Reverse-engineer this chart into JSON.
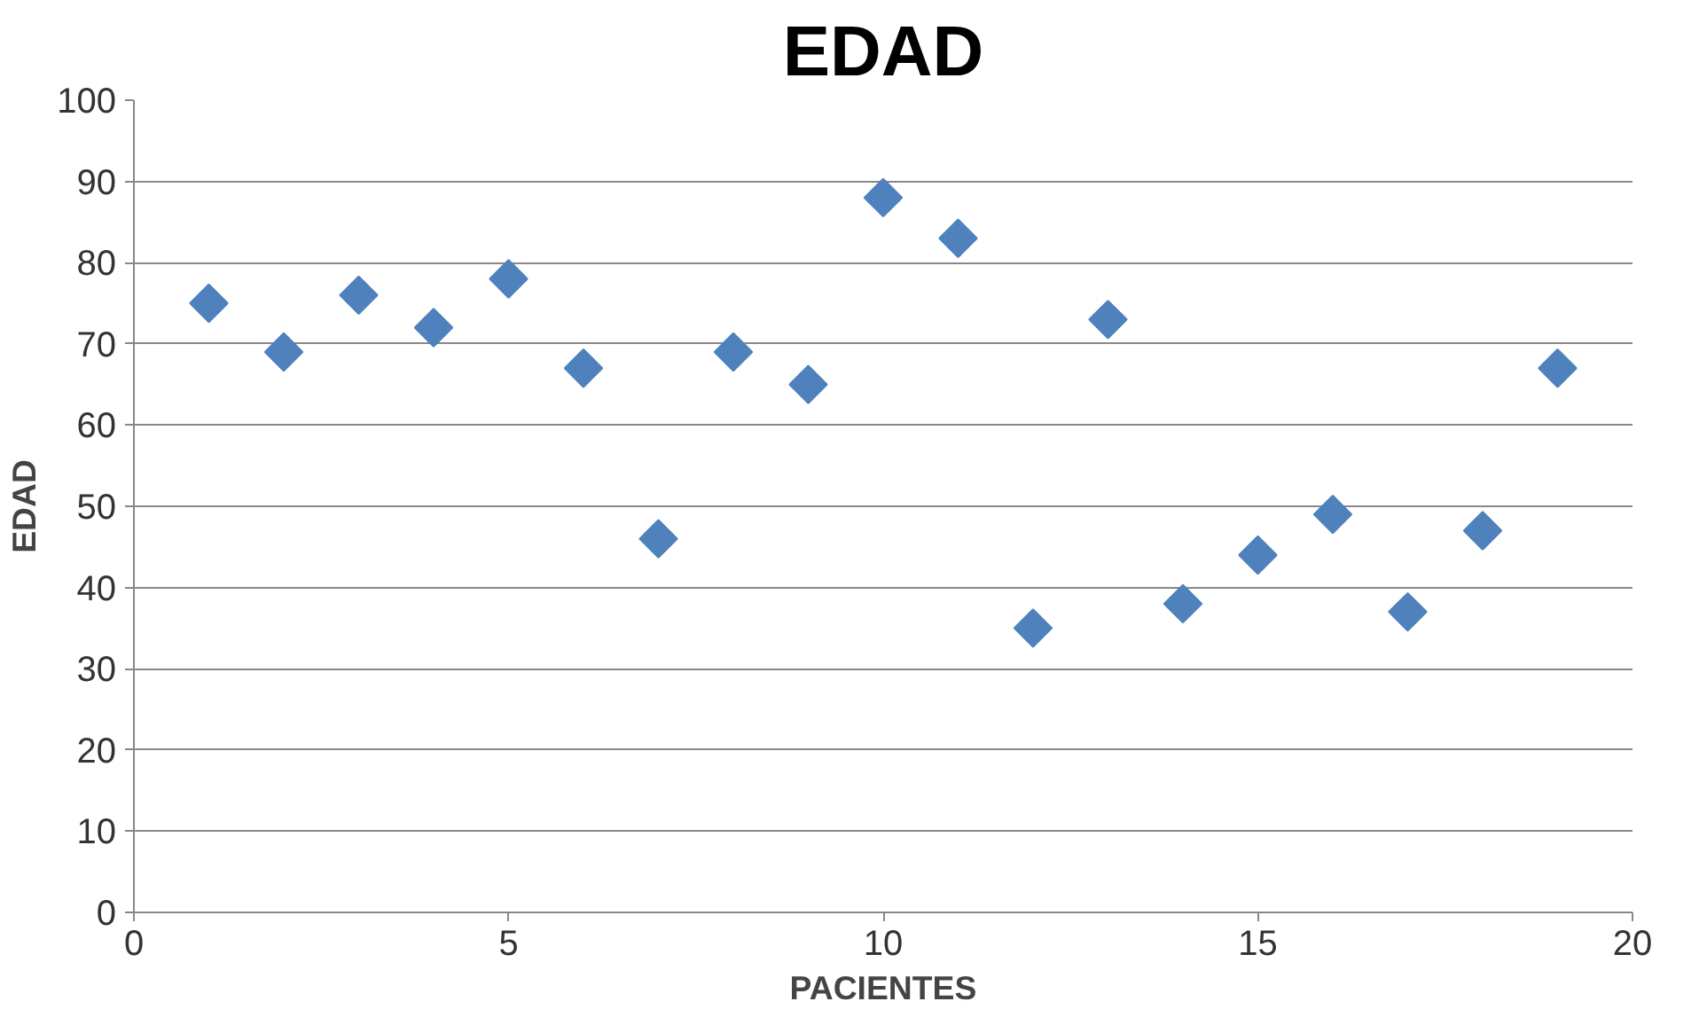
{
  "chart_data": {
    "type": "scatter",
    "title": "EDAD",
    "xlabel": "PACIENTES",
    "ylabel": "EDAD",
    "x": [
      1,
      2,
      3,
      4,
      5,
      6,
      7,
      8,
      9,
      10,
      11,
      12,
      13,
      14,
      15,
      16,
      17,
      18,
      19
    ],
    "series": [
      {
        "color": "#4f81bd",
        "values": [
          75,
          69,
          76,
          72,
          78,
          67,
          46,
          69,
          65,
          88,
          83,
          35,
          73,
          38,
          44,
          49,
          37,
          47,
          67
        ]
      }
    ],
    "xlim": [
      0,
      20
    ],
    "xticks": [
      0,
      5,
      10,
      15,
      20
    ],
    "ylim": [
      0,
      100
    ],
    "yticks": [
      0,
      10,
      20,
      30,
      40,
      50,
      60,
      70,
      80,
      90,
      100
    ],
    "grid": "y",
    "marker": "diamond"
  }
}
